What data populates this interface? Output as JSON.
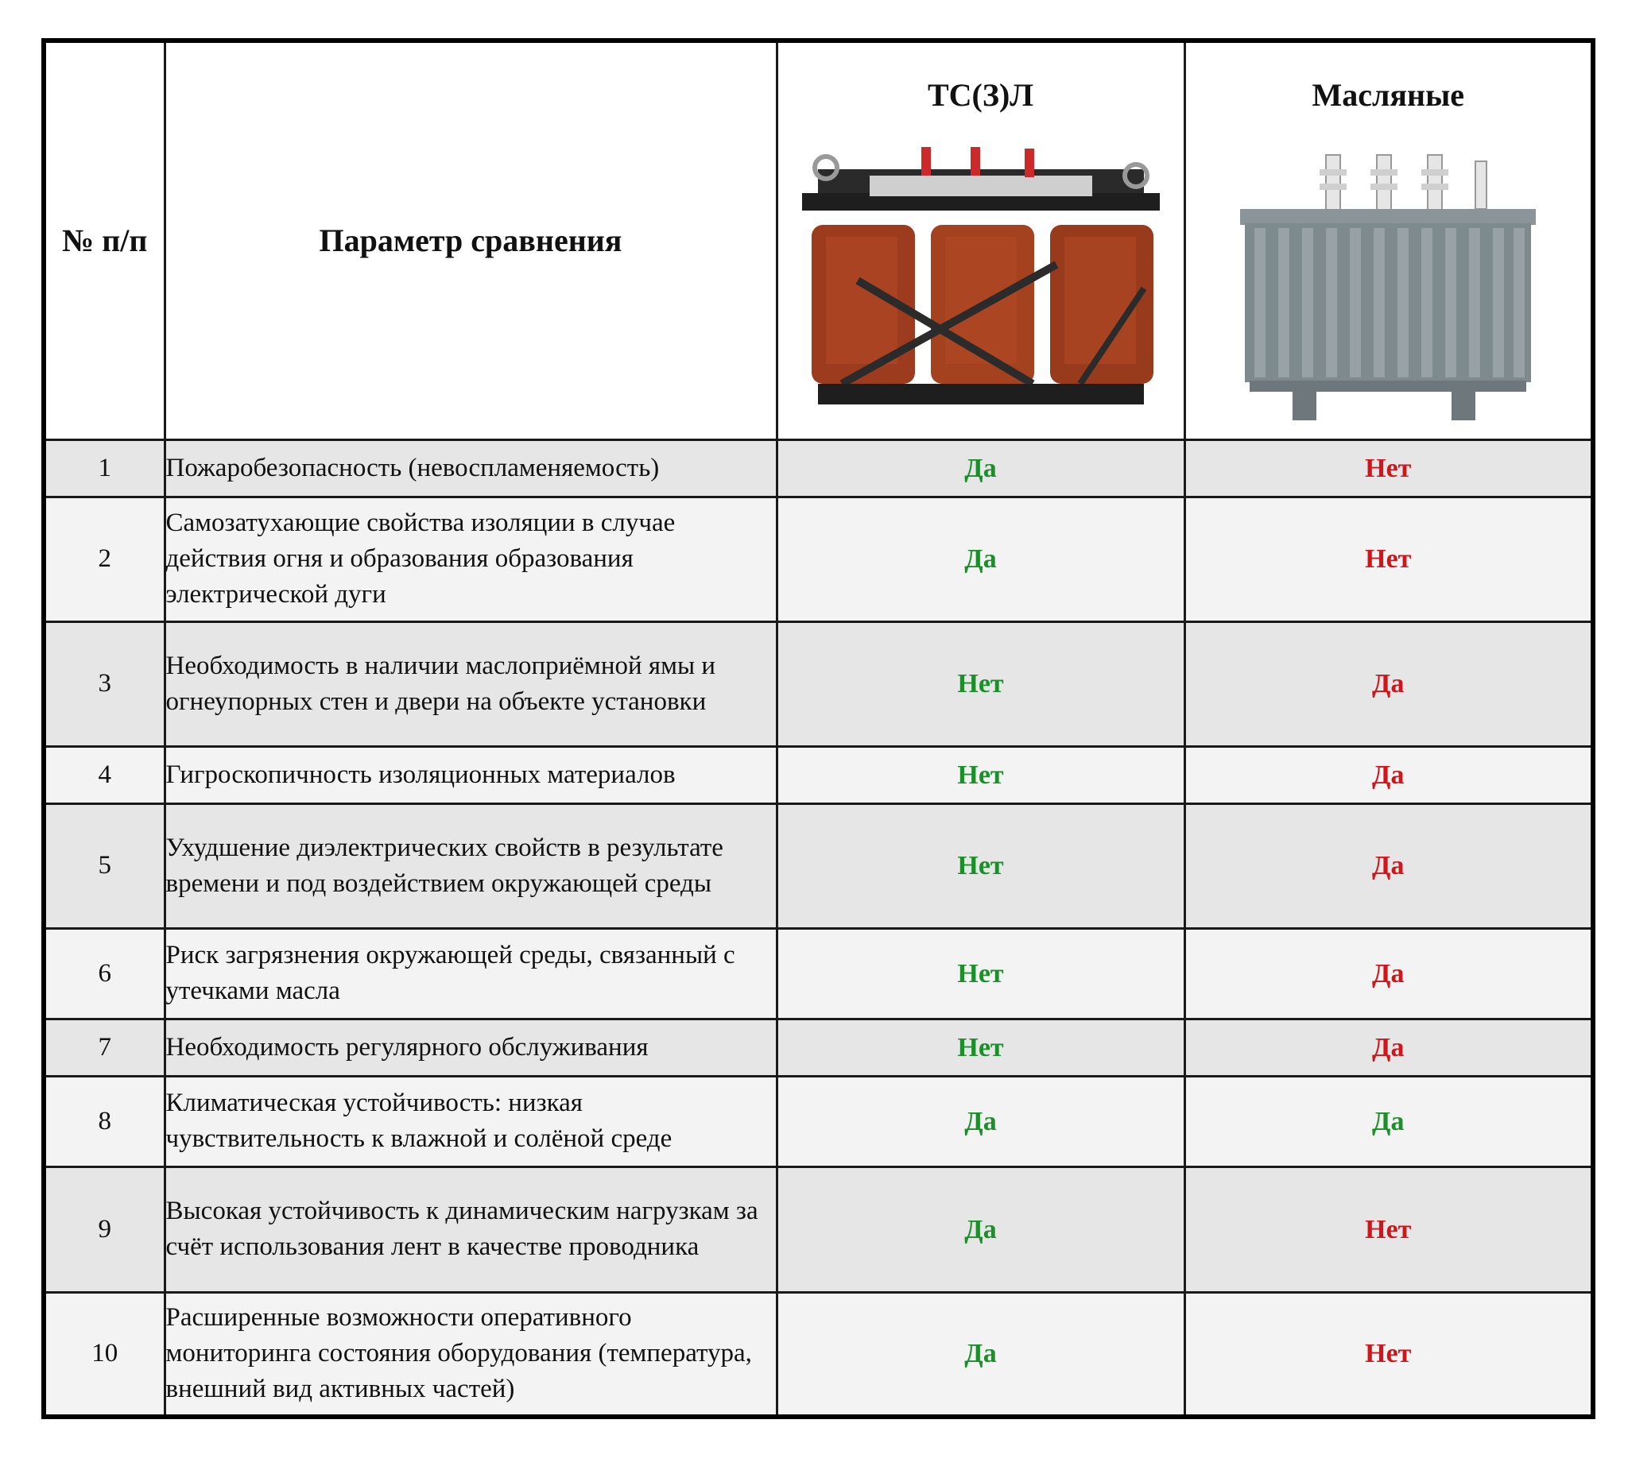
{
  "header": {
    "num_label": "№ п/п",
    "param_label": "Параметр сравнения",
    "product_a": "ТС(З)Л",
    "product_b": "Масляные"
  },
  "colors": {
    "positive": "#1d8f2a",
    "negative": "#d0151b"
  },
  "rows": [
    {
      "num": "1",
      "param": "Пожаробезопасность (невоспламеняемость)",
      "a": "Да",
      "b": "Нет",
      "a_color": "green",
      "b_color": "red"
    },
    {
      "num": "2",
      "param": "Самозатухающие свойства изоляции в случае действия огня и образования образования электрической дуги",
      "a": "Да",
      "b": "Нет",
      "a_color": "green",
      "b_color": "red"
    },
    {
      "num": "3",
      "param": "Необходимость в наличии маслоприёмной ямы и огнеупорных стен и двери на объекте установки",
      "a": "Нет",
      "b": "Да",
      "a_color": "green",
      "b_color": "red"
    },
    {
      "num": "4",
      "param": "Гигроскопичность изоляционных материалов",
      "a": "Нет",
      "b": "Да",
      "a_color": "green",
      "b_color": "red"
    },
    {
      "num": "5",
      "param": "Ухудшение диэлектрических свойств в результате времени и под воздействием окружающей среды",
      "a": "Нет",
      "b": "Да",
      "a_color": "green",
      "b_color": "red"
    },
    {
      "num": "6",
      "param": "Риск загрязнения окружающей среды, связанный с утечками масла",
      "a": "Нет",
      "b": "Да",
      "a_color": "green",
      "b_color": "red"
    },
    {
      "num": "7",
      "param": "Необходимость регулярного обслуживания",
      "a": "Нет",
      "b": "Да",
      "a_color": "green",
      "b_color": "red"
    },
    {
      "num": "8",
      "param": "Климатическая устойчивость: низкая чувствительность к влажной и солёной среде",
      "a": "Да",
      "b": "Да",
      "a_color": "green",
      "b_color": "green"
    },
    {
      "num": "9",
      "param": "Высокая устойчивость к динамическим нагрузкам за счёт использования лент в качестве проводника",
      "a": "Да",
      "b": "Нет",
      "a_color": "green",
      "b_color": "red"
    },
    {
      "num": "10",
      "param": "Расширенные возможности оперативного мониторинга состояния оборудования (температура, внешний вид активных частей)",
      "a": "Да",
      "b": "Нет",
      "a_color": "green",
      "b_color": "red"
    }
  ]
}
